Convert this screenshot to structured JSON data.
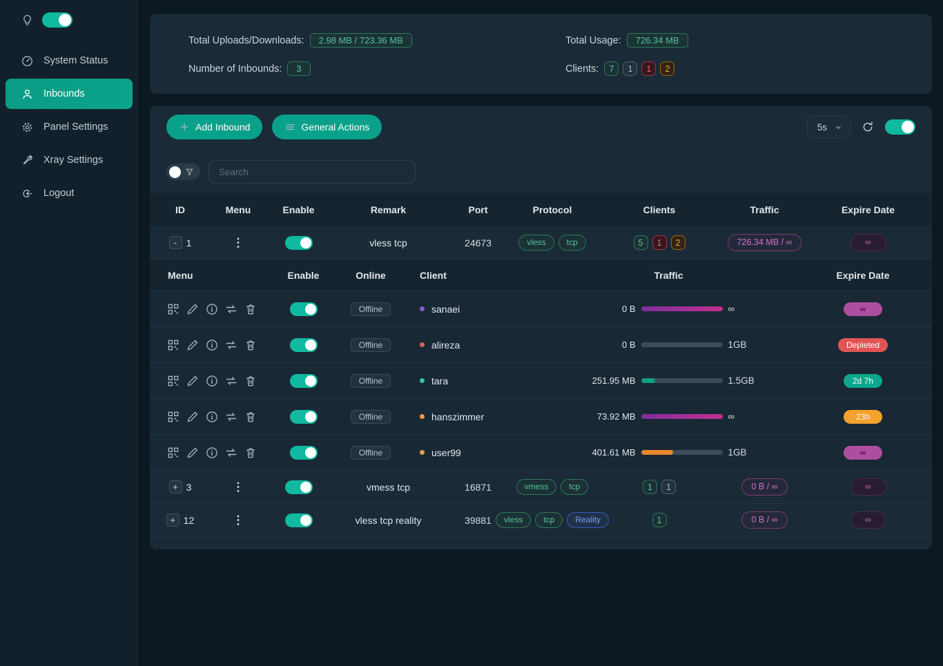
{
  "colors": {
    "accent": "#0aa18b",
    "toggle_on": "#10b9a0",
    "badge_green": "#56c392",
    "badge_red": "#e46a70",
    "badge_orange": "#e3a33c",
    "badge_gray": "#aab6bf",
    "traffic_pink": "#d072c4",
    "progress_magenta": "#c2308f",
    "progress_green": "#0f9f7f",
    "progress_orange": "#e8872b"
  },
  "sidebar": {
    "items": [
      {
        "label": "System Status"
      },
      {
        "label": "Inbounds"
      },
      {
        "label": "Panel Settings"
      },
      {
        "label": "Xray Settings"
      },
      {
        "label": "Logout"
      }
    ]
  },
  "stats": {
    "uploads": {
      "label": "Total Uploads/Downloads:",
      "value": "2.98 MB / 723.36 MB"
    },
    "usage": {
      "label": "Total Usage:",
      "value": "726.34 MB"
    },
    "inbounds": {
      "label": "Number of Inbounds:",
      "value": "3"
    },
    "clients": {
      "label": "Clients:",
      "counts": [
        "7",
        "1",
        "1",
        "2"
      ]
    }
  },
  "toolbar": {
    "add_inbound": "Add Inbound",
    "general_actions": "General Actions",
    "refresh_interval": "5s"
  },
  "search": {
    "placeholder": "Search"
  },
  "inbounds_table": {
    "headers": {
      "id": "ID",
      "menu": "Menu",
      "enable": "Enable",
      "remark": "Remark",
      "port": "Port",
      "protocol": "Protocol",
      "clients": "Clients",
      "traffic": "Traffic",
      "expire": "Expire Date"
    },
    "rows": [
      {
        "expand": "-",
        "id": "1",
        "remark": "vless tcp",
        "port": "24673",
        "protocols": [
          "vless",
          "tcp"
        ],
        "client_counts": [
          "5",
          "1",
          "2"
        ],
        "traffic": "726.34 MB / ∞",
        "expire": "∞"
      },
      {
        "expand": "+",
        "id": "3",
        "remark": "vmess tcp",
        "port": "16871",
        "protocols": [
          "vmess",
          "tcp"
        ],
        "client_counts": [
          "1",
          "1"
        ],
        "traffic": "0 B / ∞",
        "expire": "∞"
      },
      {
        "expand": "+",
        "id": "12",
        "remark": "vless tcp reality",
        "port": "39881",
        "protocols": [
          "vless",
          "tcp",
          "Reality"
        ],
        "client_counts": [
          "1"
        ],
        "traffic": "0 B / ∞",
        "expire": "∞"
      }
    ]
  },
  "clients_table": {
    "headers": {
      "menu": "Menu",
      "enable": "Enable",
      "online": "Online",
      "client": "Client",
      "traffic": "Traffic",
      "expire": "Expire Date"
    },
    "rows": [
      {
        "online": "Offline",
        "name": "sanaei",
        "used": "0 B",
        "limit": "∞",
        "progress": "100%",
        "expire": "∞"
      },
      {
        "online": "Offline",
        "name": "alireza",
        "used": "0 B",
        "limit": "1GB",
        "progress": "0%",
        "expire": "Depleted"
      },
      {
        "online": "Offline",
        "name": "tara",
        "used": "251.95 MB",
        "limit": "1.5GB",
        "progress": "17%",
        "expire": "2d 7h"
      },
      {
        "online": "Offline",
        "name": "hanszimmer",
        "used": "73.92 MB",
        "limit": "∞",
        "progress": "100%",
        "expire": "23h"
      },
      {
        "online": "Offline",
        "name": "user99",
        "used": "401.61 MB",
        "limit": "1GB",
        "progress": "39%",
        "expire": "∞"
      }
    ]
  }
}
